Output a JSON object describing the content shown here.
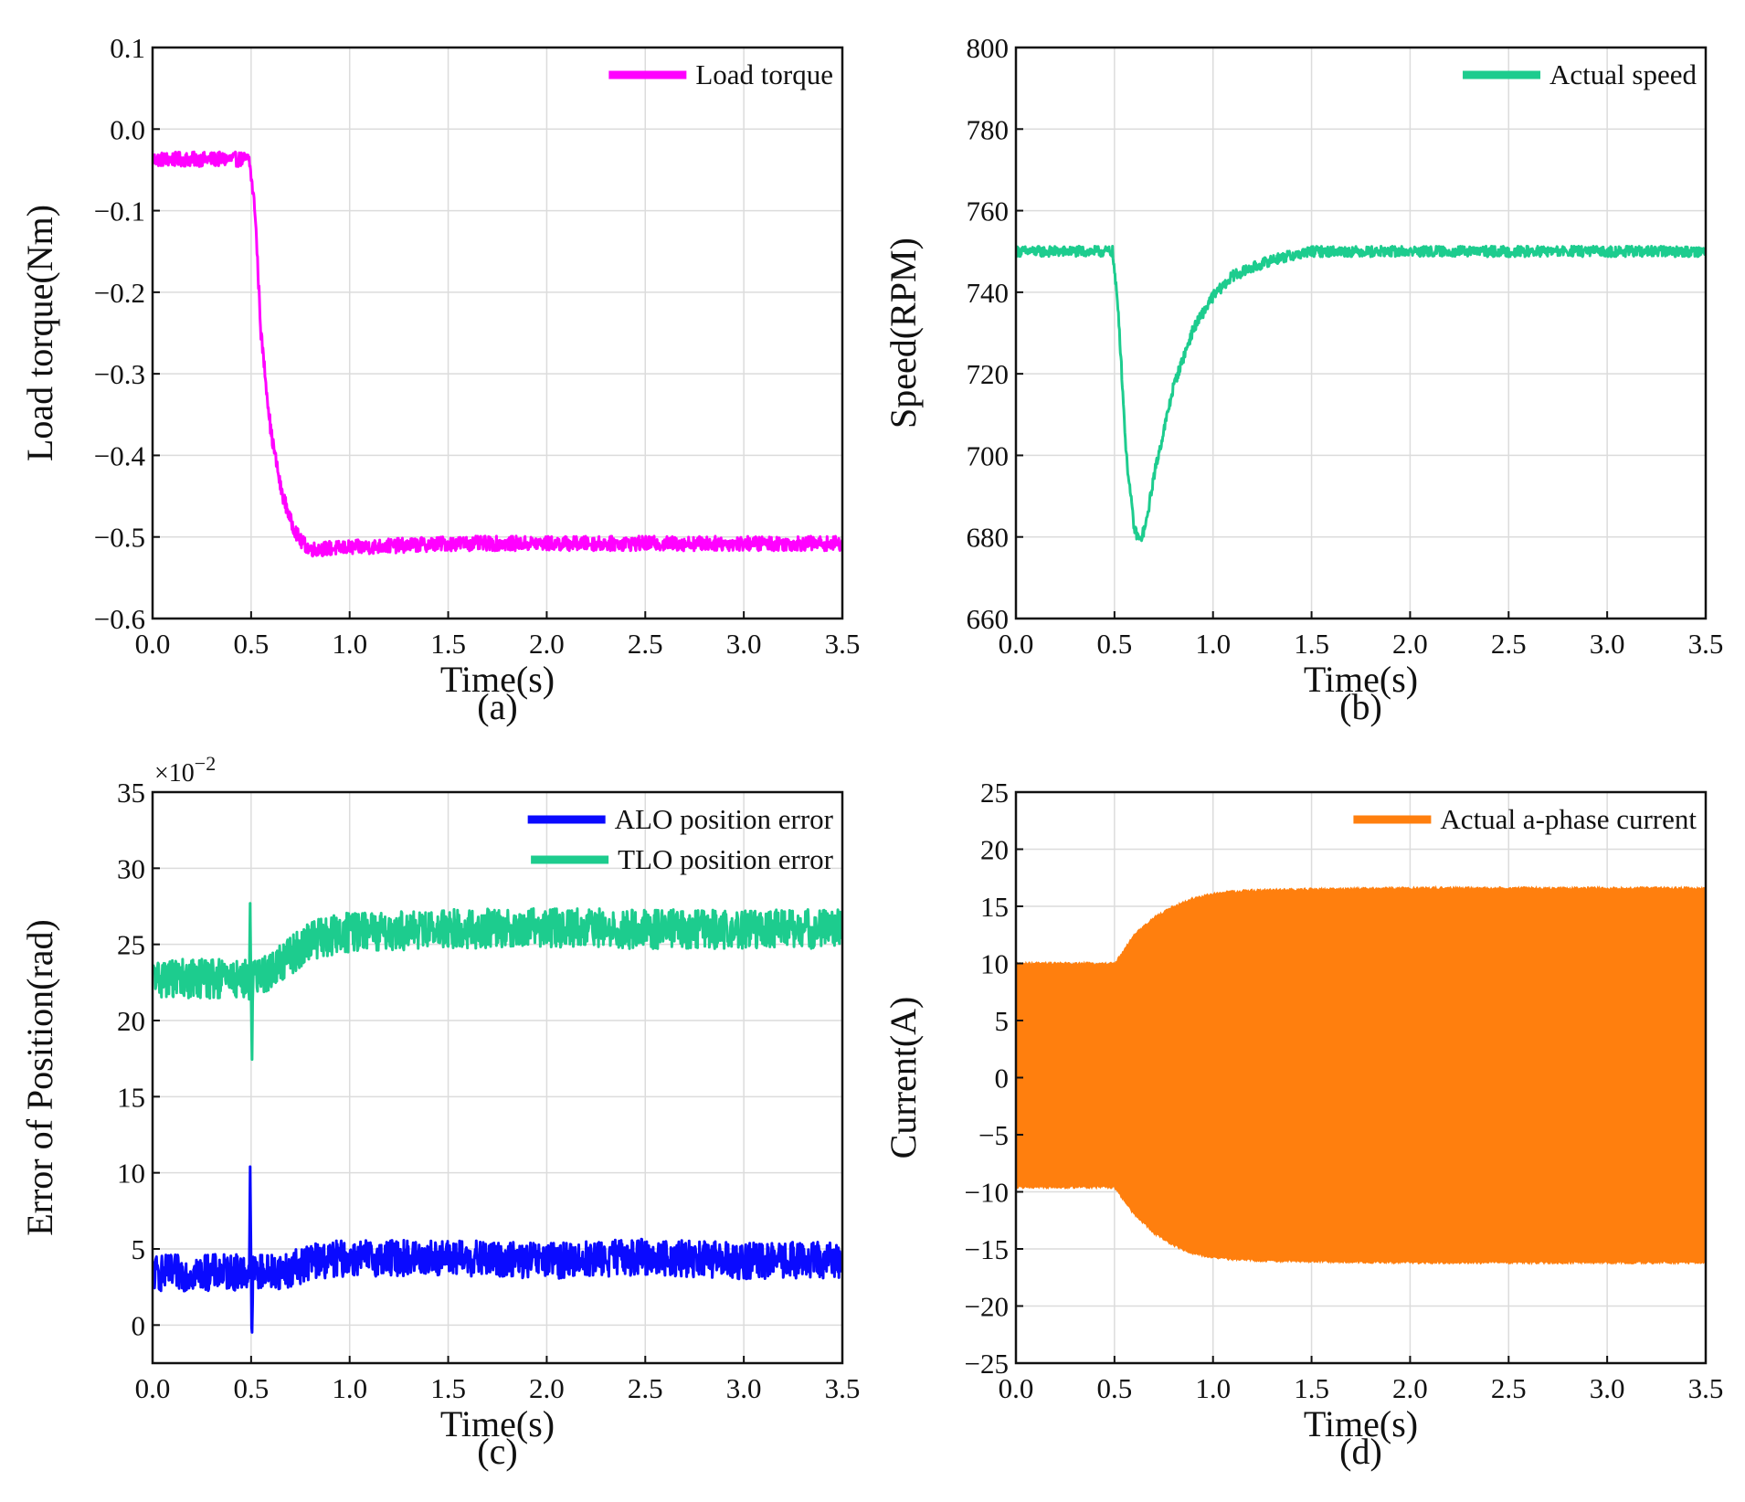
{
  "figure": {
    "background": "#ffffff",
    "grid_color": "#dcdcdc",
    "axis_color": "#111111"
  },
  "chart_data": [
    {
      "id": "a",
      "type": "line",
      "caption": "(a)",
      "title": "",
      "xlabel": "Time(s)",
      "ylabel": "Load torque(Nm)",
      "xlim": [
        0.0,
        3.5
      ],
      "ylim": [
        -0.6,
        0.1
      ],
      "xticks": [
        "0.0",
        "0.5",
        "1.0",
        "1.5",
        "2.0",
        "2.5",
        "3.0",
        "3.5"
      ],
      "yticks": [
        "−0.6",
        "−0.5",
        "−0.4",
        "−0.3",
        "−0.2",
        "−0.1",
        "0.0",
        "0.1"
      ],
      "grid": true,
      "legend_position": "top-right",
      "series": [
        {
          "name": "Load torque",
          "color": "#ff00ff",
          "noise": 0.018,
          "x": [
            0.0,
            0.49,
            0.52,
            0.55,
            0.6,
            0.65,
            0.7,
            0.75,
            0.8,
            1.0,
            1.5,
            2.0,
            2.5,
            3.0,
            3.5
          ],
          "y": [
            -0.037,
            -0.037,
            -0.1,
            -0.25,
            -0.37,
            -0.44,
            -0.48,
            -0.505,
            -0.515,
            -0.513,
            -0.508,
            -0.508,
            -0.508,
            -0.508,
            -0.508
          ]
        }
      ]
    },
    {
      "id": "b",
      "type": "line",
      "caption": "(b)",
      "title": "",
      "xlabel": "Time(s)",
      "ylabel": "Speed(RPM)",
      "xlim": [
        0.0,
        3.5
      ],
      "ylim": [
        660,
        800
      ],
      "xticks": [
        "0.0",
        "0.5",
        "1.0",
        "1.5",
        "2.0",
        "2.5",
        "3.0",
        "3.5"
      ],
      "yticks": [
        "660",
        "680",
        "700",
        "720",
        "740",
        "760",
        "780",
        "800"
      ],
      "grid": true,
      "legend_position": "top-right",
      "series": [
        {
          "name": "Actual speed",
          "color": "#1dcc8e",
          "noise": 2.6,
          "x": [
            0.0,
            0.49,
            0.52,
            0.56,
            0.6,
            0.63,
            0.66,
            0.7,
            0.8,
            0.9,
            1.0,
            1.1,
            1.2,
            1.3,
            1.4,
            1.5,
            2.0,
            2.5,
            3.0,
            3.5
          ],
          "y": [
            750,
            750,
            735,
            700,
            682,
            679,
            683,
            695,
            717,
            731,
            739,
            744,
            746,
            748,
            749,
            750,
            750,
            750,
            750,
            750
          ]
        }
      ]
    },
    {
      "id": "c",
      "type": "line",
      "caption": "(c)",
      "title": "",
      "xlabel": "Time(s)",
      "ylabel": "Error of Position(rad)",
      "y_scale_label": "×10",
      "y_scale_exponent": "−2",
      "xlim": [
        0.0,
        3.5
      ],
      "ylim": [
        -2.5,
        35
      ],
      "xticks": [
        "0.0",
        "0.5",
        "1.0",
        "1.5",
        "2.0",
        "2.5",
        "3.0",
        "3.5"
      ],
      "yticks": [
        "0",
        "5",
        "10",
        "15",
        "20",
        "25",
        "30",
        "35"
      ],
      "grid": true,
      "legend_position": "top-right",
      "series": [
        {
          "name": "ALO position error",
          "color": "#0a0aff",
          "noise": 2.4,
          "x": [
            0.0,
            0.49,
            0.495,
            0.5,
            0.505,
            0.51,
            0.52,
            0.7,
            0.8,
            1.0,
            1.5,
            2.0,
            2.5,
            3.0,
            3.5
          ],
          "y": [
            3.4,
            3.5,
            9.5,
            3.5,
            -1.5,
            3.5,
            3.5,
            3.6,
            4.2,
            4.4,
            4.4,
            4.2,
            4.5,
            4.2,
            4.3
          ]
        },
        {
          "name": "TLO position error",
          "color": "#1dcc8e",
          "noise": 2.6,
          "x": [
            0.0,
            0.49,
            0.495,
            0.5,
            0.505,
            0.51,
            0.52,
            0.6,
            0.8,
            1.0,
            1.5,
            2.0,
            2.5,
            3.0,
            3.5
          ],
          "y": [
            22.8,
            22.7,
            27.3,
            22.7,
            17.8,
            22.7,
            22.7,
            23.2,
            25.3,
            25.8,
            26.0,
            26.1,
            26.0,
            26.0,
            26.0
          ]
        }
      ]
    },
    {
      "id": "d",
      "type": "area",
      "caption": "(d)",
      "title": "",
      "xlabel": "Time(s)",
      "ylabel": "Current(A)",
      "xlim": [
        0.0,
        3.5
      ],
      "ylim": [
        -25,
        25
      ],
      "xticks": [
        "0.0",
        "0.5",
        "1.0",
        "1.5",
        "2.0",
        "2.5",
        "3.0",
        "3.5"
      ],
      "yticks": [
        "−25",
        "−20",
        "−15",
        "−10",
        "−5",
        "0",
        "5",
        "10",
        "15",
        "20",
        "25"
      ],
      "grid": true,
      "legend_position": "top-right",
      "series": [
        {
          "name": "Actual a-phase current",
          "color": "#ff7f0e",
          "x": [
            0.0,
            0.49,
            0.5,
            0.55,
            0.6,
            0.7,
            0.8,
            0.9,
            1.0,
            1.1,
            1.2,
            1.5,
            2.0,
            2.5,
            3.0,
            3.5
          ],
          "upper": [
            10.0,
            10.0,
            10.0,
            11.2,
            12.5,
            14.0,
            15.0,
            15.7,
            16.1,
            16.3,
            16.4,
            16.5,
            16.6,
            16.6,
            16.6,
            16.6
          ],
          "lower": [
            -9.6,
            -9.6,
            -9.6,
            -10.8,
            -12.0,
            -13.6,
            -14.7,
            -15.4,
            -15.8,
            -15.9,
            -16.0,
            -16.1,
            -16.2,
            -16.2,
            -16.2,
            -16.2
          ]
        }
      ]
    }
  ]
}
